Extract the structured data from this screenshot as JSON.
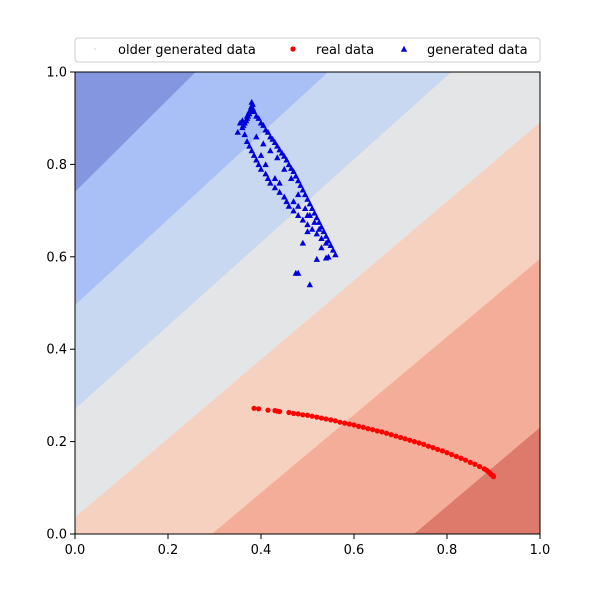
{
  "chart_data": {
    "type": "scatter",
    "xlim": [
      0,
      1
    ],
    "ylim": [
      0,
      1
    ],
    "xticks": [
      "0.0",
      "0.2",
      "0.4",
      "0.6",
      "0.8",
      "1.0"
    ],
    "yticks": [
      "0.0",
      "0.2",
      "0.4",
      "0.6",
      "0.8",
      "1.0"
    ],
    "grid": false,
    "legend_position": "top",
    "background": {
      "kind": "filled-contour",
      "levels_direction": "y - x",
      "bands": [
        {
          "color": "#dd7a6b",
          "upper_boundary": {
            "x0": 0.73,
            "x1": 1.0,
            "y_at_x1": 0.23
          }
        },
        {
          "color": "#f4ad98",
          "upper_boundary": {
            "x0": 0.295,
            "x1": 1.0,
            "y_at_x1": 0.595
          }
        },
        {
          "color": "#f6d1bf",
          "upper_boundary": {
            "x_at_y0": 0.0,
            "y_at_x0": 0.035,
            "x1": 1.0,
            "y_at_x1": 0.89
          }
        },
        {
          "color": "#e4e5e6",
          "upper_boundary": {
            "y_at_x0": 0.27,
            "x_at_y1": 0.81
          }
        },
        {
          "color": "#c9d8f1",
          "upper_boundary": {
            "y_at_x0": 0.495,
            "x_at_y1": 0.545
          }
        },
        {
          "color": "#a9c0f7",
          "upper_boundary": {
            "y_at_x0": 0.74,
            "x_at_y1": 0.26
          }
        },
        {
          "color": "#8596e1",
          "upper_boundary": null
        }
      ]
    },
    "series": [
      {
        "name": "older generated data",
        "marker": "point",
        "color": "#e8e8e8",
        "points": [
          [
            0.48,
            0.58
          ],
          [
            0.52,
            0.565
          ],
          [
            0.55,
            0.56
          ],
          [
            0.5,
            0.6
          ],
          [
            0.47,
            0.62
          ]
        ]
      },
      {
        "name": "real data",
        "marker": "circle",
        "color": "#ff0000",
        "points": [
          [
            0.385,
            0.272
          ],
          [
            0.395,
            0.271
          ],
          [
            0.415,
            0.268
          ],
          [
            0.43,
            0.267
          ],
          [
            0.435,
            0.266
          ],
          [
            0.44,
            0.265
          ],
          [
            0.46,
            0.263
          ],
          [
            0.47,
            0.261
          ],
          [
            0.48,
            0.26
          ],
          [
            0.49,
            0.258
          ],
          [
            0.5,
            0.257
          ],
          [
            0.51,
            0.255
          ],
          [
            0.52,
            0.253
          ],
          [
            0.53,
            0.251
          ],
          [
            0.54,
            0.249
          ],
          [
            0.55,
            0.247
          ],
          [
            0.56,
            0.245
          ],
          [
            0.57,
            0.242
          ],
          [
            0.58,
            0.24
          ],
          [
            0.59,
            0.238
          ],
          [
            0.6,
            0.236
          ],
          [
            0.61,
            0.233
          ],
          [
            0.62,
            0.231
          ],
          [
            0.63,
            0.228
          ],
          [
            0.64,
            0.226
          ],
          [
            0.65,
            0.223
          ],
          [
            0.66,
            0.221
          ],
          [
            0.67,
            0.218
          ],
          [
            0.68,
            0.215
          ],
          [
            0.69,
            0.212
          ],
          [
            0.7,
            0.209
          ],
          [
            0.71,
            0.206
          ],
          [
            0.72,
            0.203
          ],
          [
            0.73,
            0.2
          ],
          [
            0.74,
            0.197
          ],
          [
            0.75,
            0.194
          ],
          [
            0.76,
            0.19
          ],
          [
            0.77,
            0.187
          ],
          [
            0.78,
            0.183
          ],
          [
            0.79,
            0.18
          ],
          [
            0.8,
            0.176
          ],
          [
            0.81,
            0.172
          ],
          [
            0.82,
            0.168
          ],
          [
            0.83,
            0.164
          ],
          [
            0.84,
            0.16
          ],
          [
            0.85,
            0.155
          ],
          [
            0.86,
            0.151
          ],
          [
            0.87,
            0.146
          ],
          [
            0.88,
            0.141
          ],
          [
            0.885,
            0.138
          ],
          [
            0.89,
            0.134
          ],
          [
            0.895,
            0.129
          ],
          [
            0.9,
            0.124
          ],
          [
            0.898,
            0.127
          ],
          [
            0.893,
            0.131
          ]
        ]
      },
      {
        "name": "generated data",
        "marker": "triangle",
        "color": "#0000dd",
        "points": [
          [
            0.38,
            0.935
          ],
          [
            0.382,
            0.93
          ],
          [
            0.379,
            0.925
          ],
          [
            0.383,
            0.92
          ],
          [
            0.378,
            0.915
          ],
          [
            0.375,
            0.91
          ],
          [
            0.372,
            0.905
          ],
          [
            0.37,
            0.9
          ],
          [
            0.368,
            0.895
          ],
          [
            0.365,
            0.89
          ],
          [
            0.362,
            0.885
          ],
          [
            0.36,
            0.88
          ],
          [
            0.385,
            0.915
          ],
          [
            0.39,
            0.905
          ],
          [
            0.395,
            0.9
          ],
          [
            0.4,
            0.89
          ],
          [
            0.405,
            0.885
          ],
          [
            0.41,
            0.875
          ],
          [
            0.415,
            0.87
          ],
          [
            0.42,
            0.86
          ],
          [
            0.425,
            0.855
          ],
          [
            0.43,
            0.848
          ],
          [
            0.435,
            0.84
          ],
          [
            0.44,
            0.832
          ],
          [
            0.445,
            0.825
          ],
          [
            0.45,
            0.818
          ],
          [
            0.455,
            0.81
          ],
          [
            0.46,
            0.8
          ],
          [
            0.465,
            0.792
          ],
          [
            0.47,
            0.785
          ],
          [
            0.475,
            0.775
          ],
          [
            0.48,
            0.765
          ],
          [
            0.485,
            0.755
          ],
          [
            0.49,
            0.745
          ],
          [
            0.495,
            0.735
          ],
          [
            0.5,
            0.725
          ],
          [
            0.505,
            0.715
          ],
          [
            0.51,
            0.705
          ],
          [
            0.515,
            0.695
          ],
          [
            0.52,
            0.685
          ],
          [
            0.525,
            0.675
          ],
          [
            0.53,
            0.665
          ],
          [
            0.535,
            0.655
          ],
          [
            0.54,
            0.645
          ],
          [
            0.545,
            0.635
          ],
          [
            0.55,
            0.625
          ],
          [
            0.555,
            0.615
          ],
          [
            0.56,
            0.605
          ],
          [
            0.365,
            0.865
          ],
          [
            0.37,
            0.85
          ],
          [
            0.375,
            0.84
          ],
          [
            0.38,
            0.83
          ],
          [
            0.385,
            0.82
          ],
          [
            0.39,
            0.81
          ],
          [
            0.395,
            0.8
          ],
          [
            0.4,
            0.79
          ],
          [
            0.41,
            0.78
          ],
          [
            0.415,
            0.77
          ],
          [
            0.42,
            0.76
          ],
          [
            0.43,
            0.75
          ],
          [
            0.44,
            0.74
          ],
          [
            0.45,
            0.73
          ],
          [
            0.455,
            0.72
          ],
          [
            0.46,
            0.71
          ],
          [
            0.47,
            0.7
          ],
          [
            0.48,
            0.69
          ],
          [
            0.49,
            0.68
          ],
          [
            0.5,
            0.67
          ],
          [
            0.51,
            0.66
          ],
          [
            0.52,
            0.65
          ],
          [
            0.53,
            0.64
          ],
          [
            0.54,
            0.63
          ],
          [
            0.4,
            0.82
          ],
          [
            0.41,
            0.8
          ],
          [
            0.43,
            0.77
          ],
          [
            0.44,
            0.76
          ],
          [
            0.47,
            0.72
          ],
          [
            0.48,
            0.71
          ],
          [
            0.5,
            0.69
          ],
          [
            0.35,
            0.87
          ],
          [
            0.355,
            0.89
          ],
          [
            0.36,
            0.895
          ],
          [
            0.37,
            0.905
          ],
          [
            0.375,
            0.915
          ],
          [
            0.39,
            0.86
          ],
          [
            0.405,
            0.845
          ],
          [
            0.42,
            0.83
          ],
          [
            0.435,
            0.815
          ],
          [
            0.45,
            0.79
          ],
          [
            0.465,
            0.77
          ],
          [
            0.48,
            0.735
          ],
          [
            0.495,
            0.705
          ],
          [
            0.505,
            0.69
          ],
          [
            0.515,
            0.675
          ],
          [
            0.525,
            0.66
          ],
          [
            0.475,
            0.565
          ],
          [
            0.48,
            0.565
          ],
          [
            0.505,
            0.54
          ],
          [
            0.52,
            0.595
          ],
          [
            0.54,
            0.598
          ],
          [
            0.49,
            0.63
          ],
          [
            0.5,
            0.655
          ],
          [
            0.53,
            0.62
          ],
          [
            0.545,
            0.6
          ]
        ]
      }
    ]
  }
}
